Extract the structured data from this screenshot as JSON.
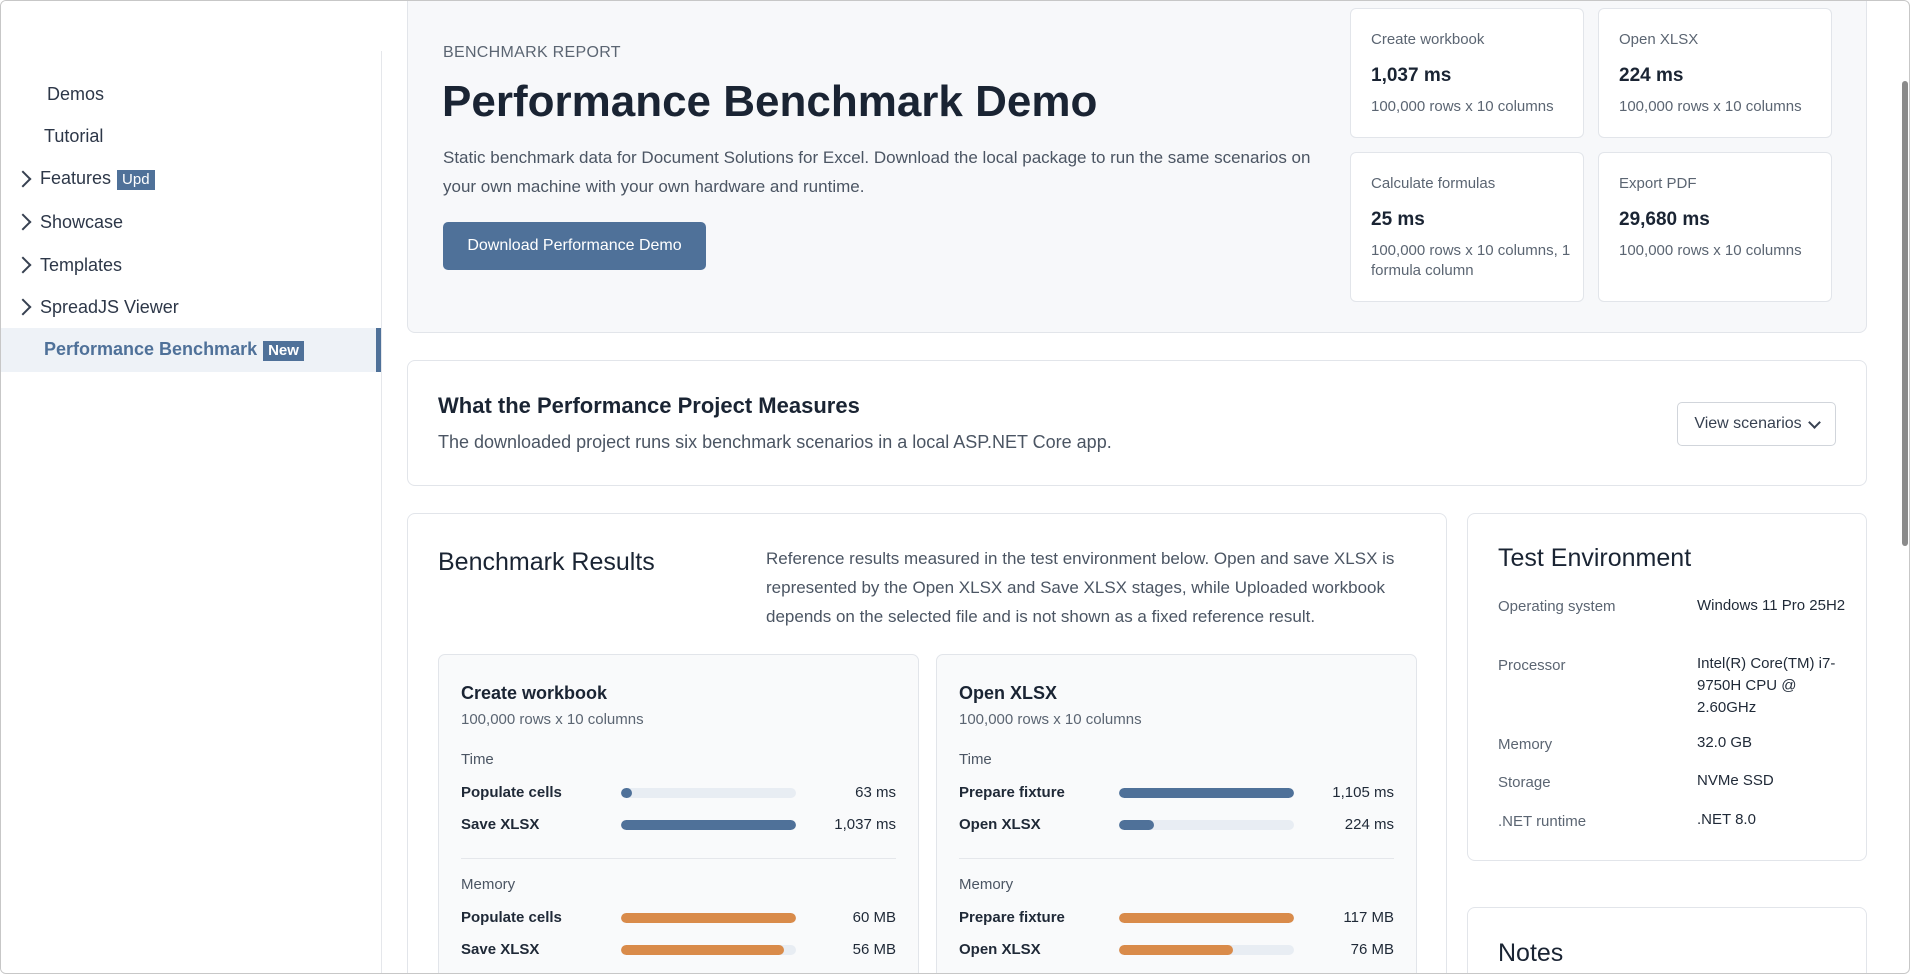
{
  "sidebar": {
    "items": [
      {
        "label": "Demos",
        "badge": ""
      },
      {
        "label": "Tutorial",
        "badge": ""
      },
      {
        "label": "Features",
        "badge": "Upd"
      },
      {
        "label": "Showcase",
        "badge": ""
      },
      {
        "label": "Templates",
        "badge": ""
      },
      {
        "label": "SpreadJS Viewer",
        "badge": ""
      },
      {
        "label": "Performance Benchmark",
        "badge": "New"
      }
    ]
  },
  "hero": {
    "eyebrow": "BENCHMARK REPORT",
    "title": "Performance Benchmark Demo",
    "description": "Static benchmark data for Document Solutions for Excel. Download the local package to run the same scenarios on your own machine with your own hardware and runtime.",
    "download_label": "Download Performance Demo"
  },
  "stats": [
    {
      "label": "Create workbook",
      "value": "1,037 ms",
      "detail": "100,000 rows x 10 columns"
    },
    {
      "label": "Open XLSX",
      "value": "224 ms",
      "detail": "100,000 rows x 10 columns"
    },
    {
      "label": "Calculate formulas",
      "value": "25 ms",
      "detail": "100,000 rows x 10 columns, 1 formula column"
    },
    {
      "label": "Export PDF",
      "value": "29,680 ms",
      "detail": "100,000 rows x 10 columns"
    }
  ],
  "measures": {
    "title": "What the Performance Project Measures",
    "subtitle": "The downloaded project runs six benchmark scenarios in a local ASP.NET Core app.",
    "view_label": "View scenarios"
  },
  "results": {
    "title": "Benchmark Results",
    "description": "Reference results measured in the test environment below. Open and save XLSX is represented by the Open XLSX and Save XLSX stages, while Uploaded workbook depends on the selected file and is not shown as a fixed reference result.",
    "time_label": "Time",
    "memory_label": "Memory",
    "cards": [
      {
        "title": "Create workbook",
        "subtitle": "100,000 rows x 10 columns",
        "time": [
          {
            "label": "Populate cells",
            "value": "63 ms",
            "fraction": 0.06
          },
          {
            "label": "Save XLSX",
            "value": "1,037 ms",
            "fraction": 1.0
          }
        ],
        "memory": [
          {
            "label": "Populate cells",
            "value": "60 MB",
            "fraction": 1.0
          },
          {
            "label": "Save XLSX",
            "value": "56 MB",
            "fraction": 0.93
          }
        ]
      },
      {
        "title": "Open XLSX",
        "subtitle": "100,000 rows x 10 columns",
        "time": [
          {
            "label": "Prepare fixture",
            "value": "1,105 ms",
            "fraction": 1.0
          },
          {
            "label": "Open XLSX",
            "value": "224 ms",
            "fraction": 0.2
          }
        ],
        "memory": [
          {
            "label": "Prepare fixture",
            "value": "117 MB",
            "fraction": 1.0
          },
          {
            "label": "Open XLSX",
            "value": "76 MB",
            "fraction": 0.65
          }
        ]
      }
    ]
  },
  "environment": {
    "title": "Test Environment",
    "rows": [
      {
        "key": "Operating system",
        "value": "Windows 11 Pro 25H2"
      },
      {
        "key": "Processor",
        "value": "Intel(R) Core(TM) i7-9750H CPU @ 2.60GHz"
      },
      {
        "key": "Memory",
        "value": "32.0 GB"
      },
      {
        "key": "Storage",
        "value": "NVMe SSD"
      },
      {
        "key": ".NET runtime",
        "value": ".NET 8.0"
      }
    ]
  },
  "notes": {
    "title": "Notes"
  },
  "colors": {
    "accent": "#4f7199",
    "memory_bar": "#d98b4a",
    "track": "#e8edf3"
  }
}
